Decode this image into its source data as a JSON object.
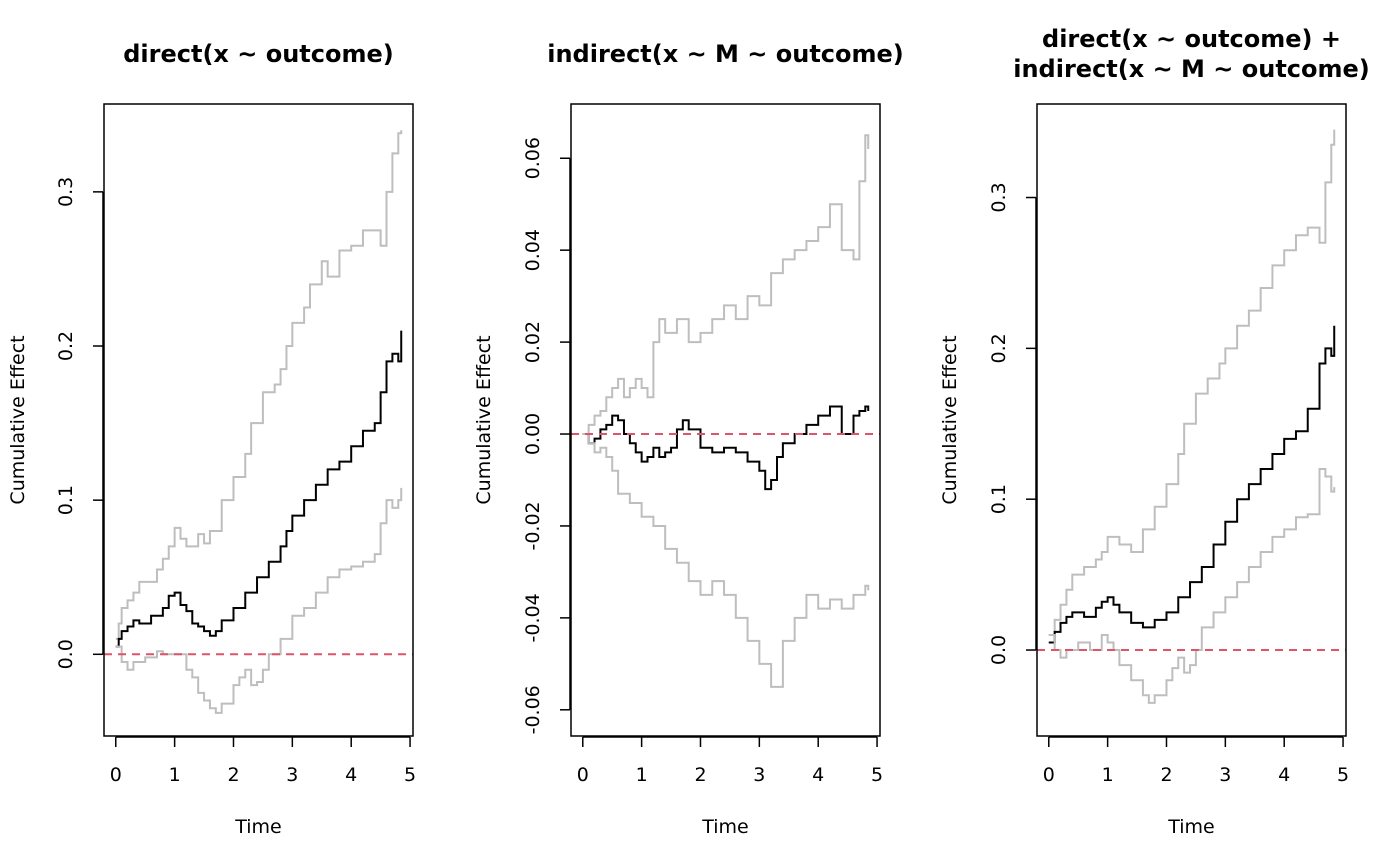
{
  "chart_data": [
    {
      "type": "line",
      "title_lines": [
        "direct(x ~ outcome)"
      ],
      "xlabel": "Time",
      "ylabel": "Cumulative Effect",
      "xlim": [
        -0.2,
        5.05
      ],
      "ylim": [
        -0.053,
        0.357
      ],
      "xticks": [
        0,
        1,
        2,
        3,
        4,
        5
      ],
      "yticks": [
        0.0,
        0.1,
        0.2,
        0.3
      ],
      "ytick_labels": [
        "0.0",
        "0.1",
        "0.2",
        "0.3"
      ],
      "reference_line": 0,
      "series": [
        {
          "role": "upper",
          "x": [
            0.0,
            0.05,
            0.1,
            0.2,
            0.3,
            0.4,
            0.5,
            0.7,
            0.8,
            0.9,
            1.0,
            1.1,
            1.2,
            1.4,
            1.5,
            1.6,
            1.8,
            2.0,
            2.2,
            2.3,
            2.5,
            2.7,
            2.8,
            2.9,
            3.0,
            3.2,
            3.3,
            3.5,
            3.6,
            3.8,
            4.0,
            4.2,
            4.5,
            4.6,
            4.7,
            4.8,
            4.85
          ],
          "y": [
            0.01,
            0.02,
            0.03,
            0.035,
            0.04,
            0.047,
            0.047,
            0.055,
            0.062,
            0.07,
            0.082,
            0.075,
            0.07,
            0.078,
            0.072,
            0.08,
            0.1,
            0.115,
            0.13,
            0.15,
            0.17,
            0.175,
            0.185,
            0.2,
            0.215,
            0.225,
            0.24,
            0.255,
            0.245,
            0.262,
            0.265,
            0.275,
            0.265,
            0.3,
            0.325,
            0.338,
            0.34
          ]
        },
        {
          "role": "estimate",
          "x": [
            0.0,
            0.05,
            0.1,
            0.2,
            0.3,
            0.4,
            0.6,
            0.8,
            0.9,
            1.0,
            1.1,
            1.2,
            1.3,
            1.4,
            1.5,
            1.6,
            1.7,
            1.8,
            2.0,
            2.2,
            2.4,
            2.6,
            2.8,
            2.9,
            3.0,
            3.2,
            3.4,
            3.6,
            3.8,
            4.0,
            4.2,
            4.4,
            4.5,
            4.6,
            4.7,
            4.8,
            4.85
          ],
          "y": [
            0.005,
            0.01,
            0.015,
            0.018,
            0.022,
            0.02,
            0.025,
            0.03,
            0.038,
            0.04,
            0.032,
            0.028,
            0.02,
            0.018,
            0.015,
            0.012,
            0.015,
            0.022,
            0.03,
            0.04,
            0.05,
            0.06,
            0.07,
            0.08,
            0.09,
            0.1,
            0.11,
            0.12,
            0.125,
            0.135,
            0.145,
            0.15,
            0.17,
            0.19,
            0.195,
            0.19,
            0.21
          ]
        },
        {
          "role": "lower",
          "x": [
            0.0,
            0.1,
            0.2,
            0.3,
            0.5,
            0.7,
            0.8,
            1.0,
            1.2,
            1.3,
            1.4,
            1.5,
            1.6,
            1.7,
            1.8,
            2.0,
            2.1,
            2.2,
            2.3,
            2.4,
            2.5,
            2.6,
            2.8,
            3.0,
            3.2,
            3.4,
            3.6,
            3.8,
            4.0,
            4.2,
            4.4,
            4.5,
            4.6,
            4.7,
            4.8,
            4.85
          ],
          "y": [
            0.005,
            -0.005,
            -0.01,
            -0.005,
            -0.002,
            0.002,
            0.0,
            0.0,
            -0.01,
            -0.015,
            -0.025,
            -0.03,
            -0.035,
            -0.038,
            -0.032,
            -0.02,
            -0.015,
            -0.01,
            -0.02,
            -0.018,
            -0.01,
            0.0,
            0.01,
            0.025,
            0.03,
            0.04,
            0.05,
            0.055,
            0.057,
            0.06,
            0.065,
            0.085,
            0.1,
            0.095,
            0.1,
            0.108
          ]
        }
      ]
    },
    {
      "type": "line",
      "title_lines": [
        "indirect(x ~ M ~ outcome)"
      ],
      "xlabel": "Time",
      "ylabel": "Cumulative Effect",
      "xlim": [
        -0.2,
        5.05
      ],
      "ylim": [
        -0.0657,
        0.0718
      ],
      "xticks": [
        0,
        1,
        2,
        3,
        4,
        5
      ],
      "yticks": [
        -0.06,
        -0.04,
        -0.02,
        0.0,
        0.02,
        0.04,
        0.06
      ],
      "ytick_labels": [
        "-0.06",
        "-0.04",
        "-0.02",
        "0.00",
        "0.02",
        "0.04",
        "0.06"
      ],
      "reference_line": 0,
      "series": [
        {
          "role": "upper",
          "x": [
            0.0,
            0.1,
            0.2,
            0.3,
            0.4,
            0.5,
            0.6,
            0.7,
            0.8,
            0.9,
            1.0,
            1.1,
            1.2,
            1.3,
            1.4,
            1.6,
            1.8,
            2.0,
            2.2,
            2.4,
            2.6,
            2.8,
            3.0,
            3.2,
            3.4,
            3.6,
            3.8,
            4.0,
            4.2,
            4.4,
            4.6,
            4.7,
            4.8,
            4.85
          ],
          "y": [
            0.0,
            0.002,
            0.004,
            0.005,
            0.008,
            0.01,
            0.012,
            0.008,
            0.01,
            0.012,
            0.01,
            0.008,
            0.02,
            0.025,
            0.022,
            0.025,
            0.02,
            0.022,
            0.025,
            0.028,
            0.025,
            0.03,
            0.028,
            0.035,
            0.038,
            0.04,
            0.042,
            0.045,
            0.05,
            0.04,
            0.038,
            0.055,
            0.065,
            0.062
          ]
        },
        {
          "role": "estimate",
          "x": [
            0.0,
            0.1,
            0.2,
            0.3,
            0.4,
            0.5,
            0.6,
            0.7,
            0.8,
            0.9,
            1.0,
            1.1,
            1.2,
            1.3,
            1.4,
            1.5,
            1.6,
            1.7,
            1.8,
            2.0,
            2.2,
            2.4,
            2.6,
            2.8,
            3.0,
            3.1,
            3.2,
            3.3,
            3.4,
            3.6,
            3.8,
            4.0,
            4.2,
            4.4,
            4.6,
            4.7,
            4.8,
            4.85
          ],
          "y": [
            0.0,
            -0.002,
            -0.001,
            0.001,
            0.002,
            0.004,
            0.003,
            0.0,
            -0.002,
            -0.004,
            -0.006,
            -0.005,
            -0.003,
            -0.005,
            -0.004,
            -0.003,
            0.001,
            0.003,
            0.001,
            -0.003,
            -0.004,
            -0.003,
            -0.004,
            -0.006,
            -0.008,
            -0.012,
            -0.01,
            -0.005,
            -0.002,
            0.0,
            0.002,
            0.004,
            0.006,
            0.0,
            0.004,
            0.005,
            0.006,
            0.005
          ]
        },
        {
          "role": "lower",
          "x": [
            0.0,
            0.1,
            0.2,
            0.3,
            0.4,
            0.5,
            0.6,
            0.8,
            1.0,
            1.2,
            1.4,
            1.6,
            1.8,
            2.0,
            2.2,
            2.4,
            2.6,
            2.8,
            3.0,
            3.2,
            3.4,
            3.6,
            3.8,
            4.0,
            4.2,
            4.4,
            4.6,
            4.8,
            4.85
          ],
          "y": [
            0.0,
            -0.002,
            -0.004,
            -0.003,
            -0.005,
            -0.008,
            -0.013,
            -0.015,
            -0.018,
            -0.02,
            -0.025,
            -0.028,
            -0.032,
            -0.035,
            -0.032,
            -0.035,
            -0.04,
            -0.045,
            -0.05,
            -0.055,
            -0.045,
            -0.04,
            -0.035,
            -0.038,
            -0.036,
            -0.038,
            -0.035,
            -0.033,
            -0.034
          ]
        }
      ]
    },
    {
      "type": "line",
      "title_lines": [
        "direct(x ~ outcome) +",
        "indirect(x ~ M ~ outcome)"
      ],
      "xlabel": "Time",
      "ylabel": "Cumulative Effect",
      "xlim": [
        -0.2,
        5.05
      ],
      "ylim": [
        -0.057,
        0.362
      ],
      "xticks": [
        0,
        1,
        2,
        3,
        4,
        5
      ],
      "yticks": [
        0.0,
        0.1,
        0.2,
        0.3
      ],
      "ytick_labels": [
        "0.0",
        "0.1",
        "0.2",
        "0.3"
      ],
      "reference_line": 0,
      "series": [
        {
          "role": "upper",
          "x": [
            0.0,
            0.1,
            0.2,
            0.3,
            0.4,
            0.6,
            0.8,
            0.9,
            1.0,
            1.2,
            1.4,
            1.6,
            1.8,
            2.0,
            2.2,
            2.3,
            2.5,
            2.7,
            2.9,
            3.0,
            3.2,
            3.4,
            3.6,
            3.8,
            4.0,
            4.2,
            4.4,
            4.6,
            4.7,
            4.8,
            4.85
          ],
          "y": [
            0.01,
            0.02,
            0.03,
            0.04,
            0.05,
            0.055,
            0.06,
            0.065,
            0.075,
            0.07,
            0.065,
            0.08,
            0.095,
            0.11,
            0.13,
            0.15,
            0.17,
            0.18,
            0.19,
            0.2,
            0.215,
            0.225,
            0.24,
            0.255,
            0.265,
            0.275,
            0.28,
            0.27,
            0.31,
            0.335,
            0.345
          ]
        },
        {
          "role": "estimate",
          "x": [
            0.0,
            0.1,
            0.2,
            0.3,
            0.4,
            0.6,
            0.8,
            0.9,
            1.0,
            1.1,
            1.2,
            1.4,
            1.6,
            1.8,
            2.0,
            2.2,
            2.4,
            2.6,
            2.8,
            3.0,
            3.2,
            3.4,
            3.6,
            3.8,
            4.0,
            4.2,
            4.4,
            4.6,
            4.7,
            4.8,
            4.85
          ],
          "y": [
            0.005,
            0.012,
            0.018,
            0.022,
            0.025,
            0.022,
            0.028,
            0.032,
            0.035,
            0.03,
            0.025,
            0.018,
            0.015,
            0.02,
            0.025,
            0.035,
            0.045,
            0.055,
            0.07,
            0.085,
            0.1,
            0.11,
            0.12,
            0.13,
            0.14,
            0.145,
            0.16,
            0.19,
            0.2,
            0.195,
            0.215
          ]
        },
        {
          "role": "lower",
          "x": [
            0.0,
            0.1,
            0.2,
            0.3,
            0.5,
            0.7,
            0.9,
            1.0,
            1.1,
            1.2,
            1.4,
            1.6,
            1.7,
            1.8,
            2.0,
            2.1,
            2.2,
            2.3,
            2.4,
            2.5,
            2.6,
            2.8,
            3.0,
            3.2,
            3.4,
            3.6,
            3.8,
            4.0,
            4.2,
            4.4,
            4.6,
            4.7,
            4.8,
            4.85
          ],
          "y": [
            0.01,
            0.0,
            -0.005,
            0.0,
            0.005,
            0.0,
            0.01,
            0.005,
            0.0,
            -0.01,
            -0.02,
            -0.03,
            -0.035,
            -0.03,
            -0.02,
            -0.012,
            -0.005,
            -0.015,
            -0.01,
            0.0,
            0.015,
            0.025,
            0.035,
            0.045,
            0.055,
            0.065,
            0.075,
            0.08,
            0.088,
            0.09,
            0.12,
            0.115,
            0.105,
            0.108
          ]
        }
      ]
    }
  ]
}
